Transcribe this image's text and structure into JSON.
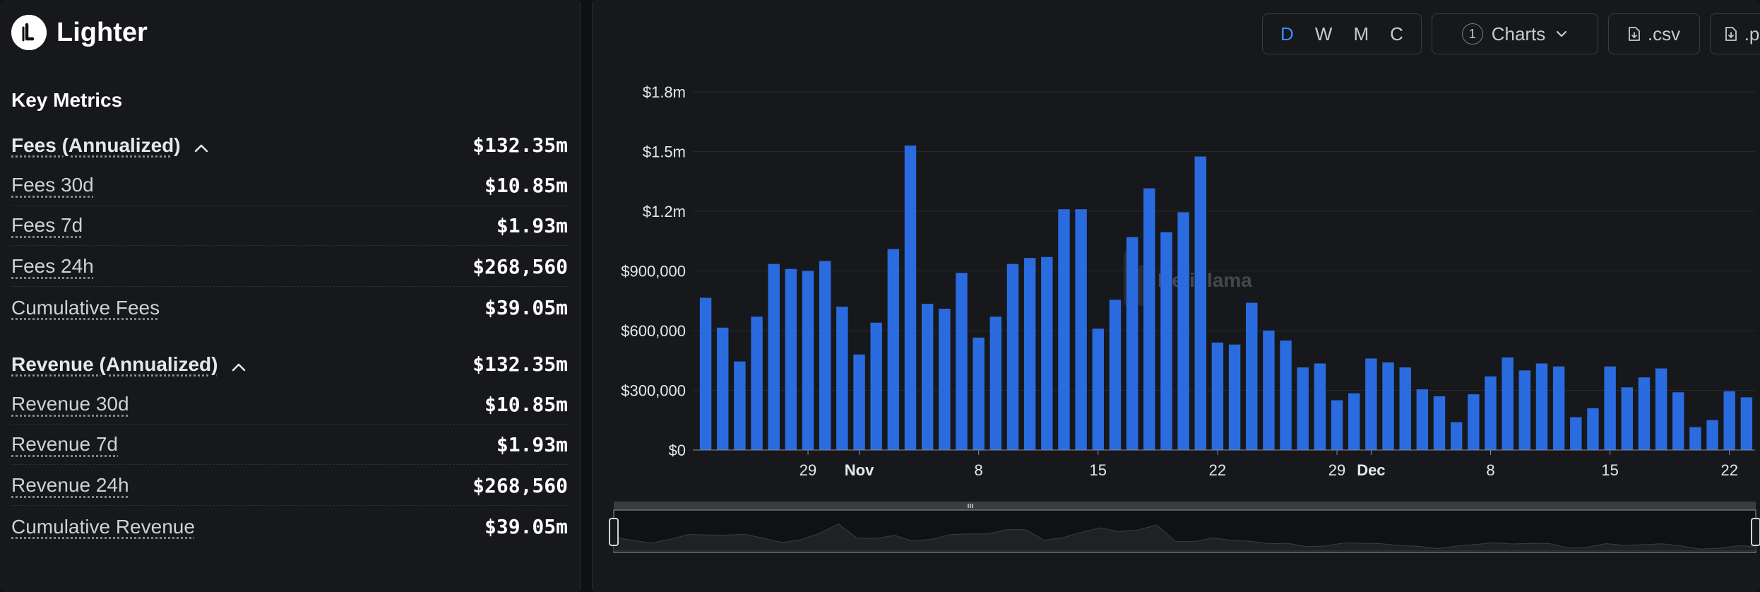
{
  "brand": {
    "name": "Lighter"
  },
  "metrics": {
    "title": "Key Metrics",
    "fees": {
      "label": "Fees (Annualized)",
      "value": "$132.35m",
      "items": [
        {
          "label": "Fees 30d",
          "value": "$10.85m"
        },
        {
          "label": "Fees 7d",
          "value": "$1.93m"
        },
        {
          "label": "Fees 24h",
          "value": "$268,560"
        },
        {
          "label": "Cumulative Fees",
          "value": "$39.05m"
        }
      ]
    },
    "revenue": {
      "label": "Revenue (Annualized)",
      "value": "$132.35m",
      "items": [
        {
          "label": "Revenue 30d",
          "value": "$10.85m"
        },
        {
          "label": "Revenue 7d",
          "value": "$1.93m"
        },
        {
          "label": "Revenue 24h",
          "value": "$268,560"
        },
        {
          "label": "Cumulative Revenue",
          "value": "$39.05m"
        }
      ]
    }
  },
  "toolbar": {
    "periods": [
      "D",
      "W",
      "M",
      "C"
    ],
    "active_period": "D",
    "charts_count": "1",
    "charts_label": "Charts",
    "csv_label": ".csv",
    "png_label": ".png"
  },
  "watermark": "DefiLlama",
  "colors": {
    "bar": "#2a6be0",
    "accent": "#3a8cff",
    "background": "#17181b"
  },
  "chart_data": {
    "type": "bar",
    "ylim": [
      0,
      1800000
    ],
    "y_ticks": [
      {
        "value": 0,
        "label": "$0"
      },
      {
        "value": 300000,
        "label": "$300,000"
      },
      {
        "value": 600000,
        "label": "$600,000"
      },
      {
        "value": 900000,
        "label": "$900,000"
      },
      {
        "value": 1200000,
        "label": "$1.2m"
      },
      {
        "value": 1500000,
        "label": "$1.5m"
      },
      {
        "value": 1800000,
        "label": "$1.8m"
      }
    ],
    "x_ticks": [
      {
        "index": 6,
        "label": "29",
        "bold": false
      },
      {
        "index": 9,
        "label": "Nov",
        "bold": true
      },
      {
        "index": 16,
        "label": "8",
        "bold": false
      },
      {
        "index": 23,
        "label": "15",
        "bold": false
      },
      {
        "index": 30,
        "label": "22",
        "bold": false
      },
      {
        "index": 37,
        "label": "29",
        "bold": false
      },
      {
        "index": 39,
        "label": "Dec",
        "bold": true
      },
      {
        "index": 46,
        "label": "8",
        "bold": false
      },
      {
        "index": 53,
        "label": "15",
        "bold": false
      },
      {
        "index": 60,
        "label": "22",
        "bold": false
      }
    ],
    "grid": true,
    "values": [
      765000,
      615000,
      445000,
      670000,
      935000,
      910000,
      900000,
      950000,
      720000,
      480000,
      640000,
      1010000,
      1530000,
      735000,
      710000,
      890000,
      565000,
      670000,
      935000,
      965000,
      970000,
      1210000,
      1210000,
      610000,
      755000,
      1070000,
      1315000,
      1095000,
      1195000,
      1475000,
      540000,
      530000,
      740000,
      600000,
      550000,
      415000,
      435000,
      250000,
      285000,
      460000,
      440000,
      415000,
      305000,
      270000,
      140000,
      280000,
      370000,
      465000,
      400000,
      435000,
      420000,
      165000,
      210000,
      420000,
      315000,
      365000,
      410000,
      290000,
      115000,
      150000,
      295000,
      265000
    ]
  }
}
